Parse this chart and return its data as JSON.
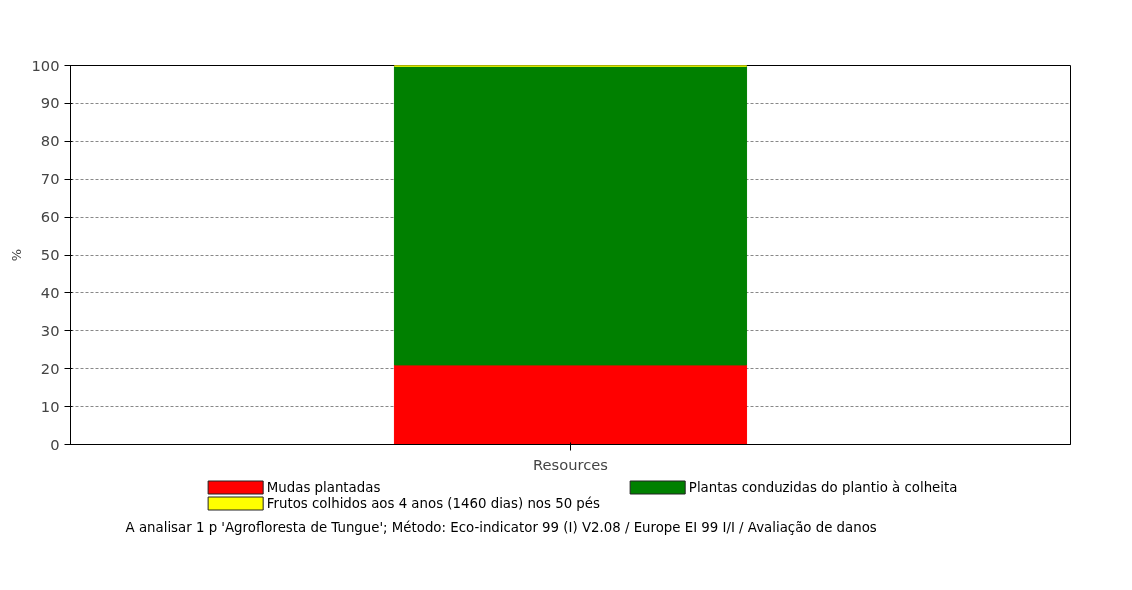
{
  "chart_data": {
    "type": "bar",
    "stacked": true,
    "categories": [
      "Resources"
    ],
    "ylabel": "%",
    "ylim": [
      0,
      100
    ],
    "yticks": [
      0,
      10,
      20,
      30,
      40,
      50,
      60,
      70,
      80,
      90,
      100
    ],
    "grid": "y",
    "legend": "bottom",
    "series": [
      {
        "name": "Mudas plantadas",
        "color": "#ff0000",
        "values": [
          21
        ]
      },
      {
        "name": "Plantas conduzidas do plantio à colheita",
        "color": "#008000",
        "values": [
          78.8
        ]
      },
      {
        "name": "Frutos colhidos aos 4 anos (1460 dias) nos 50 pés",
        "color": "#ffff00",
        "values": [
          0.2
        ]
      }
    ],
    "annotations": [
      "A analisar 1 p 'Agrofloresta de Tungue';  Método: Eco-indicator 99 (I) V2.08 / Europe EI 99 I/I / Avaliação de danos"
    ]
  }
}
